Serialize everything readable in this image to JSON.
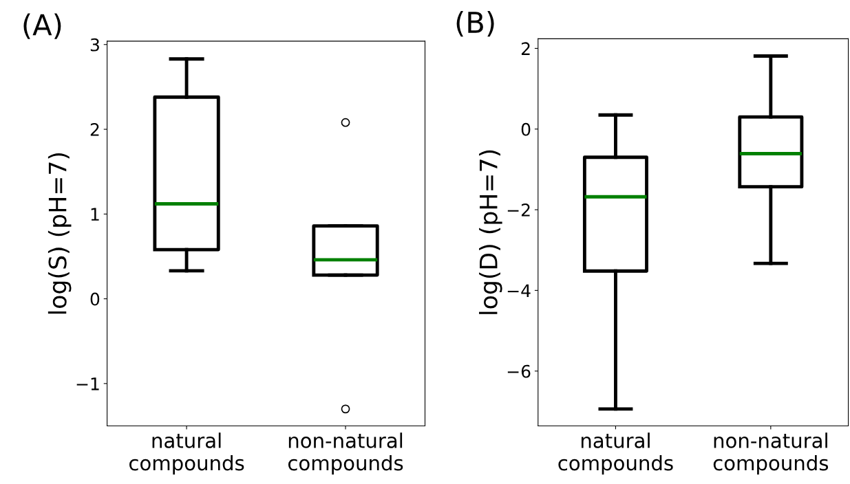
{
  "chart_data": [
    {
      "type": "box",
      "title": "(A)",
      "ylabel": "log(S) (pH=7)",
      "categories": [
        "natural\ncompounds",
        "non-natural\ncompounds"
      ],
      "ylim": [
        -1.5,
        3.04
      ],
      "yticks": [
        {
          "value": -1,
          "label": "−1"
        },
        0,
        1,
        2,
        3
      ],
      "grid": false,
      "series": [
        {
          "color": "#000000",
          "boxes": [
            {
              "low": 0.33,
              "q1": 0.58,
              "median": 1.12,
              "q3": 2.38,
              "high": 2.83
            },
            {
              "low": 0.28,
              "q1": 0.28,
              "median": 0.46,
              "q3": 0.86,
              "high": 0.86,
              "outliers": [
                2.08,
                -1.3
              ]
            }
          ]
        }
      ]
    },
    {
      "type": "box",
      "title": "(B)",
      "ylabel": "log(D) (pH=7)",
      "categories": [
        "natural\ncompounds",
        "non-natural\ncompounds"
      ],
      "ylim": [
        -7.36,
        2.24
      ],
      "yticks": [
        {
          "value": -6,
          "label": "−6"
        },
        {
          "value": -4,
          "label": "−4"
        },
        {
          "value": -2,
          "label": "−2"
        },
        0,
        2
      ],
      "grid": false,
      "series": [
        {
          "color": "#000000",
          "boxes": [
            {
              "low": -6.94,
              "q1": -3.52,
              "median": -1.68,
              "q3": -0.7,
              "high": 0.35
            },
            {
              "low": -3.33,
              "q1": -1.43,
              "median": -0.61,
              "q3": 0.3,
              "high": 1.81
            }
          ]
        }
      ]
    }
  ]
}
